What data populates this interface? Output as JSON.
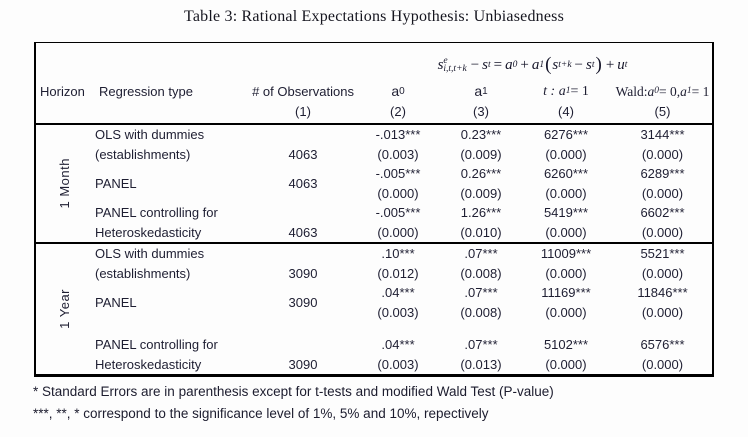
{
  "title": "Table 3: Rational Expectations Hypothesis: Unbiasedness",
  "formula": {
    "base1": "s",
    "sup1": "e",
    "sub1": "i,t,t+k",
    "op1": "−",
    "base2": "s",
    "sub2": "t",
    "op2": "=",
    "base3": "a",
    "sub3": "0",
    "op3": "+",
    "base4": "a",
    "sub4": "1",
    "lparen": "(",
    "base5": "s",
    "sub5": "t+k",
    "op4": "−",
    "base6": "s",
    "sub6": "t",
    "rparen": ")",
    "op5": "+",
    "base7": "u",
    "sub7": "t"
  },
  "columns": {
    "horizon": "Horizon",
    "regression": "Regression type",
    "observations": "# of Observations",
    "a0_base": "a",
    "a0_sub": "0",
    "a1_base": "a",
    "a1_sub": "1",
    "t_head": {
      "p1": "t : a",
      "sub": "1",
      "p2": " = 1"
    },
    "wald_head": {
      "p1": "Wald: ",
      "a1": "a",
      "sub1": "0",
      "p2": " = 0, ",
      "a2": "a",
      "sub2": "1",
      "p3": " = 1"
    },
    "nums": [
      "(1)",
      "(2)",
      "(3)",
      "(4)",
      "(5)"
    ]
  },
  "sections": [
    {
      "horizon": "1 Month",
      "rows": [
        {
          "label1": "OLS with dummies",
          "label2": "(establishments)",
          "obs": "4063",
          "a0": "-.013***",
          "a0_se": "(0.003)",
          "a1": "0.23***",
          "a1_se": "(0.009)",
          "t": "6276***",
          "t_se": "(0.000)",
          "wald": "3144***",
          "wald_se": "(0.000)"
        },
        {
          "label1": "PANEL",
          "label2": "",
          "obs": "4063",
          "a0": "-.005***",
          "a0_se": "(0.000)",
          "a1": "0.26***",
          "a1_se": "(0.009)",
          "t": "6260***",
          "t_se": "(0.000)",
          "wald": "6289***",
          "wald_se": "(0.000)"
        },
        {
          "label1": "PANEL controlling for",
          "label2": "Heteroskedasticity",
          "obs": "4063",
          "a0": "-.005***",
          "a0_se": "(0.000)",
          "a1": "1.26***",
          "a1_se": "(0.010)",
          "t": "5419***",
          "t_se": "(0.000)",
          "wald": "6602***",
          "wald_se": "(0.000)"
        }
      ]
    },
    {
      "horizon": "1 Year",
      "rows": [
        {
          "label1": "OLS with dummies",
          "label2": "(establishments)",
          "obs": "3090",
          "a0": ".10***",
          "a0_se": "(0.012)",
          "a1": ".07***",
          "a1_se": "(0.008)",
          "t": "11009***",
          "t_se": "(0.000)",
          "wald": "5521***",
          "wald_se": "(0.000)"
        },
        {
          "label1": "PANEL",
          "label2": "",
          "obs": "3090",
          "a0": ".04***",
          "a0_se": "(0.003)",
          "a1": ".07***",
          "a1_se": "(0.008)",
          "t": "11169***",
          "t_se": "(0.000)",
          "wald": "11846***",
          "wald_se": "(0.000)"
        },
        {
          "label1": "PANEL controlling for",
          "label2": "Heteroskedasticity",
          "obs": "3090",
          "a0": ".04***",
          "a0_se": "(0.003)",
          "a1": ".07***",
          "a1_se": "(0.013)",
          "t": "5102***",
          "t_se": "(0.000)",
          "wald": "6576***",
          "wald_se": "(0.000)"
        }
      ]
    }
  ],
  "footnotes": [
    "* Standard Errors are in parenthesis except for t-tests and modified Wald Test (P-value)",
    "***, **, * correspond to the significance level of 1%, 5% and 10%, repectively"
  ]
}
